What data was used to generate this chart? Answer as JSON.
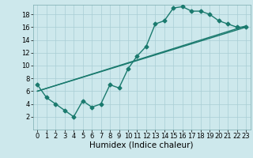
{
  "xlabel": "Humidex (Indice chaleur)",
  "background_color": "#cde8ec",
  "grid_color": "#a8cdd4",
  "line_color": "#1a7a6e",
  "xlim": [
    -0.5,
    23.5
  ],
  "ylim": [
    0,
    19.5
  ],
  "xticks": [
    0,
    1,
    2,
    3,
    4,
    5,
    6,
    7,
    8,
    9,
    10,
    11,
    12,
    13,
    14,
    15,
    16,
    17,
    18,
    19,
    20,
    21,
    22,
    23
  ],
  "yticks": [
    2,
    4,
    6,
    8,
    10,
    12,
    14,
    16,
    18
  ],
  "line1_x": [
    0,
    1,
    2,
    3,
    4,
    5,
    6,
    7,
    8,
    9,
    10,
    11,
    12,
    13,
    14,
    15,
    16,
    17,
    18,
    19,
    20,
    21,
    22,
    23
  ],
  "line1_y": [
    7,
    5,
    4,
    3,
    2,
    4.5,
    3.5,
    4,
    7,
    6.5,
    9.5,
    11.5,
    13,
    16.5,
    17,
    19,
    19.2,
    18.5,
    18.5,
    18,
    17,
    16.5,
    16,
    16
  ],
  "line2_x": [
    0,
    23
  ],
  "line2_y": [
    6,
    16
  ],
  "line3_x": [
    0,
    23
  ],
  "line3_y": [
    6,
    16.2
  ],
  "marker_size": 2.5,
  "linewidth": 1.0,
  "tick_fontsize": 6,
  "xlabel_fontsize": 7.5
}
